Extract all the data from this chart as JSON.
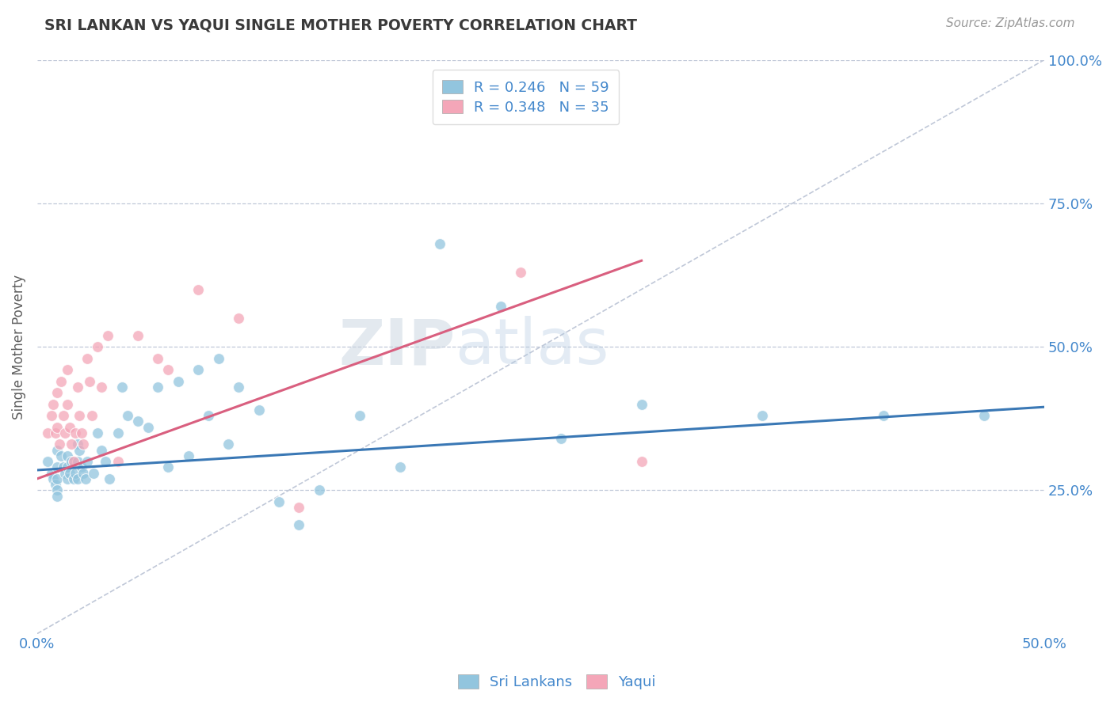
{
  "title": "SRI LANKAN VS YAQUI SINGLE MOTHER POVERTY CORRELATION CHART",
  "source_text": "Source: ZipAtlas.com",
  "ylabel": "Single Mother Poverty",
  "xlim": [
    0.0,
    0.5
  ],
  "ylim": [
    0.0,
    1.0
  ],
  "y_tick_labels": [
    "25.0%",
    "50.0%",
    "75.0%",
    "100.0%"
  ],
  "y_tick_values": [
    0.25,
    0.5,
    0.75,
    1.0
  ],
  "watermark_zip": "ZIP",
  "watermark_atlas": "atlas",
  "legend_r1": "R = 0.246",
  "legend_n1": "N = 59",
  "legend_r2": "R = 0.348",
  "legend_n2": "N = 35",
  "blue_color": "#92c5de",
  "pink_color": "#f4a6b8",
  "blue_line_color": "#3a78b5",
  "pink_line_color": "#d95f7f",
  "dash_line_color": "#c0c8d8",
  "title_color": "#3a3a3a",
  "axis_label_color": "#4488cc",
  "ylabel_color": "#606060",
  "background_color": "#ffffff",
  "sri_lankans_x": [
    0.005,
    0.007,
    0.008,
    0.009,
    0.01,
    0.01,
    0.01,
    0.01,
    0.01,
    0.012,
    0.013,
    0.014,
    0.015,
    0.015,
    0.015,
    0.016,
    0.017,
    0.018,
    0.019,
    0.02,
    0.02,
    0.02,
    0.021,
    0.022,
    0.023,
    0.024,
    0.025,
    0.028,
    0.03,
    0.032,
    0.034,
    0.036,
    0.04,
    0.042,
    0.045,
    0.05,
    0.055,
    0.06,
    0.065,
    0.07,
    0.075,
    0.08,
    0.085,
    0.09,
    0.095,
    0.1,
    0.11,
    0.12,
    0.13,
    0.14,
    0.16,
    0.18,
    0.2,
    0.23,
    0.26,
    0.3,
    0.36,
    0.42,
    0.47
  ],
  "sri_lankans_y": [
    0.3,
    0.28,
    0.27,
    0.26,
    0.32,
    0.29,
    0.27,
    0.25,
    0.24,
    0.31,
    0.29,
    0.28,
    0.31,
    0.29,
    0.27,
    0.28,
    0.3,
    0.27,
    0.28,
    0.33,
    0.3,
    0.27,
    0.32,
    0.29,
    0.28,
    0.27,
    0.3,
    0.28,
    0.35,
    0.32,
    0.3,
    0.27,
    0.35,
    0.43,
    0.38,
    0.37,
    0.36,
    0.43,
    0.29,
    0.44,
    0.31,
    0.46,
    0.38,
    0.48,
    0.33,
    0.43,
    0.39,
    0.23,
    0.19,
    0.25,
    0.38,
    0.29,
    0.68,
    0.57,
    0.34,
    0.4,
    0.38,
    0.38,
    0.38
  ],
  "yaqui_x": [
    0.005,
    0.007,
    0.008,
    0.009,
    0.01,
    0.01,
    0.011,
    0.012,
    0.013,
    0.014,
    0.015,
    0.015,
    0.016,
    0.017,
    0.018,
    0.019,
    0.02,
    0.021,
    0.022,
    0.023,
    0.025,
    0.026,
    0.027,
    0.03,
    0.032,
    0.035,
    0.04,
    0.05,
    0.06,
    0.065,
    0.08,
    0.1,
    0.13,
    0.24,
    0.3
  ],
  "yaqui_y": [
    0.35,
    0.38,
    0.4,
    0.35,
    0.42,
    0.36,
    0.33,
    0.44,
    0.38,
    0.35,
    0.46,
    0.4,
    0.36,
    0.33,
    0.3,
    0.35,
    0.43,
    0.38,
    0.35,
    0.33,
    0.48,
    0.44,
    0.38,
    0.5,
    0.43,
    0.52,
    0.3,
    0.52,
    0.48,
    0.46,
    0.6,
    0.55,
    0.22,
    0.63,
    0.3
  ]
}
